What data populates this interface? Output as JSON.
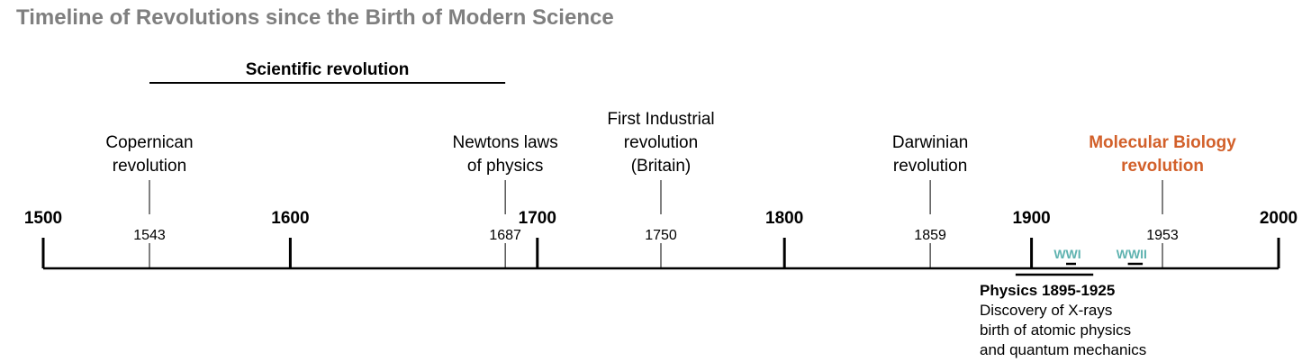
{
  "title": "Timeline of Revolutions since the Birth of Modern Science",
  "colors": {
    "axis": "#000000",
    "highlight": "#d2602a",
    "war": "#5fb3b0",
    "title": "#7f7f7f"
  },
  "axis": {
    "start": 1500,
    "end": 2000,
    "major_ticks": [
      "1500",
      "1600",
      "1700",
      "1800",
      "1900",
      "2000"
    ]
  },
  "era": {
    "label": "Scientific revolution",
    "from": 1543,
    "to": 1687
  },
  "events": [
    {
      "year": 1543,
      "year_label": "1543",
      "lines": [
        "Copernican",
        "revolution"
      ],
      "highlight": false
    },
    {
      "year": 1687,
      "year_label": "1687",
      "lines": [
        "Newtons laws",
        "of physics"
      ],
      "highlight": false
    },
    {
      "year": 1750,
      "year_label": "1750",
      "lines": [
        "First Industrial",
        "revolution",
        "(Britain)"
      ],
      "highlight": false
    },
    {
      "year": 1859,
      "year_label": "1859",
      "lines": [
        "Darwinian",
        "revolution"
      ],
      "highlight": false
    },
    {
      "year": 1953,
      "year_label": "1953",
      "lines": [
        "Molecular Biology",
        "revolution"
      ],
      "highlight": true
    }
  ],
  "wars": [
    {
      "label": "WWI",
      "from": 1914,
      "to": 1918
    },
    {
      "label": "WWII",
      "from": 1939,
      "to": 1945
    }
  ],
  "physics": {
    "from": 1895,
    "to": 1925,
    "heading": "Physics 1895-1925",
    "lines": [
      "Discovery of X-rays",
      "birth of atomic physics",
      "and quantum mechanics"
    ]
  }
}
